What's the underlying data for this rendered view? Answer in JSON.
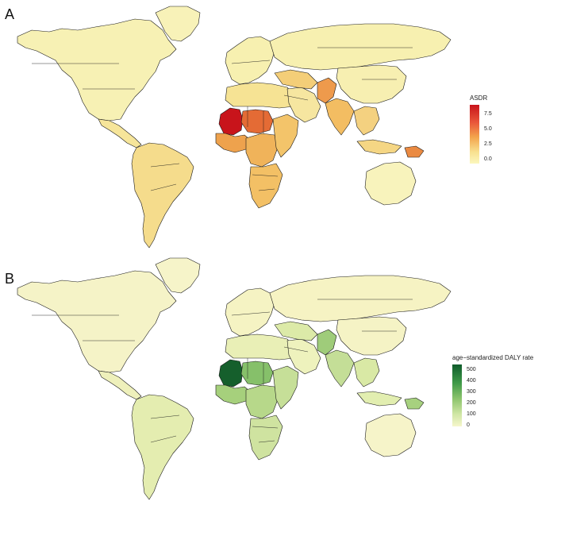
{
  "panels": [
    {
      "letter": "A",
      "base_color": "#f7f0b0",
      "legend": {
        "title": "ASDR",
        "ticks": [
          "7.5",
          "5.0",
          "2.5",
          "0.0"
        ],
        "gradient": [
          "#c8141b",
          "#e9563a",
          "#f3a44c",
          "#f8e08f",
          "#fbf7be"
        ]
      },
      "regions": {
        "north_america": "#f7f1b4",
        "greenland": "#f8f2b8",
        "central_america": "#f6e59a",
        "south_america": "#f5dc8c",
        "europe": "#f7f0b0",
        "russia": "#f7f0b0",
        "north_africa": "#f6e394",
        "sahel_west": "#c8141b",
        "sahel_mid": "#e46b35",
        "west_africa": "#eea24d",
        "central_africa": "#f0b35a",
        "east_africa": "#f3c46a",
        "southern_africa": "#f3c065",
        "arabia": "#f6e6a0",
        "middle_east": "#f4ce78",
        "pakistan": "#ee9a4c",
        "india": "#f3bd62",
        "china": "#f7efb1",
        "se_asia": "#f4d180",
        "indonesia": "#f5d684",
        "png": "#ea8a42",
        "australia": "#f8f3bc"
      }
    },
    {
      "letter": "B",
      "base_color": "#f6f3c3",
      "legend": {
        "title": "age−standardized DALY rate",
        "ticks": [
          "500",
          "400",
          "300",
          "200",
          "100",
          "0"
        ],
        "gradient": [
          "#0f5c2b",
          "#3f9a48",
          "#8cc46c",
          "#cfe6a4",
          "#f6f6cc"
        ]
      },
      "regions": {
        "north_america": "#f5f3c7",
        "greenland": "#f6f4c9",
        "central_america": "#eef0bb",
        "south_america": "#e4edb0",
        "europe": "#f5f3c3",
        "russia": "#f6f3c3",
        "north_africa": "#e9efb6",
        "sahel_west": "#155f2c",
        "sahel_mid": "#86c06a",
        "west_africa": "#a6d07c",
        "central_africa": "#b7d88a",
        "east_africa": "#c6df98",
        "southern_africa": "#cfe3a0",
        "arabia": "#eef2bd",
        "middle_east": "#dceaa8",
        "pakistan": "#9fcc7a",
        "india": "#c4de97",
        "china": "#f5f3c5",
        "se_asia": "#d9e9a5",
        "indonesia": "#e2eeb0",
        "png": "#a7d17f",
        "australia": "#f6f4c9"
      }
    }
  ]
}
